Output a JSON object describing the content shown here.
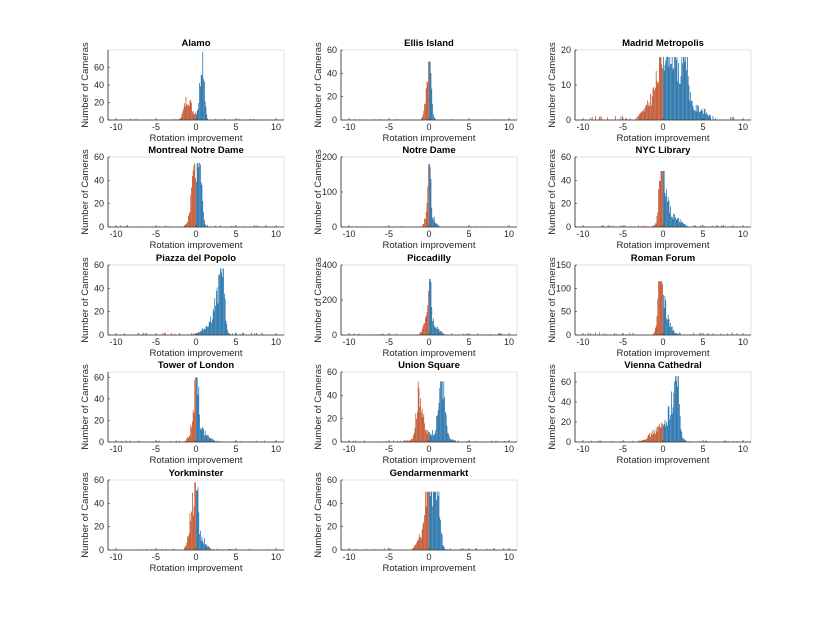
{
  "figure": {
    "background": "#ffffff"
  },
  "colors": {
    "positive": "#1f6fa8",
    "negative": "#c0502a",
    "axis": "#262626"
  },
  "chart_data": [
    {
      "type": "bar",
      "title": "Alamo",
      "xlabel": "Rotation improvement",
      "ylabel": "Number of Cameras",
      "xlim": [
        -11,
        11
      ],
      "ylim": [
        0,
        80
      ],
      "xticks": [
        -10,
        -5,
        0,
        5,
        10
      ],
      "yticks": [
        0,
        20,
        40,
        60
      ],
      "grid": false,
      "peaks": [
        {
          "x": 0.8,
          "y": 78,
          "w": 0.25
        },
        {
          "x": -1.0,
          "y": 25,
          "w": 0.45
        },
        {
          "x": 0.2,
          "y": 8,
          "w": 0.3
        }
      ],
      "tail": 0.5
    },
    {
      "type": "bar",
      "title": "Ellis Island",
      "xlabel": "Rotation improvement",
      "ylabel": "Number of Cameras",
      "xlim": [
        -11,
        11
      ],
      "ylim": [
        0,
        60
      ],
      "xticks": [
        -10,
        -5,
        0,
        5,
        10
      ],
      "yticks": [
        0,
        20,
        40,
        60
      ],
      "grid": false,
      "peaks": [
        {
          "x": 0.1,
          "y": 50,
          "w": 0.18
        },
        {
          "x": -0.1,
          "y": 25,
          "w": 0.35
        }
      ],
      "tail": 0.3
    },
    {
      "type": "bar",
      "title": "Madrid Metropolis",
      "xlabel": "Rotation improvement",
      "ylabel": "Number of Cameras",
      "xlim": [
        -11,
        11
      ],
      "ylim": [
        0,
        20
      ],
      "xticks": [
        -10,
        -5,
        0,
        5,
        10
      ],
      "yticks": [
        0,
        10,
        20
      ],
      "grid": false,
      "peaks": [
        {
          "x": 0.8,
          "y": 14,
          "w": 0.9
        },
        {
          "x": 2.8,
          "y": 18,
          "w": 0.35
        },
        {
          "x": 0.2,
          "y": 10,
          "w": 1.6
        },
        {
          "x": 4.5,
          "y": 3,
          "w": 1.0
        }
      ],
      "tail": 0.4
    },
    {
      "type": "bar",
      "title": "Montreal Notre Dame",
      "xlabel": "Rotation improvement",
      "ylabel": "Number of Cameras",
      "xlim": [
        -11,
        11
      ],
      "ylim": [
        0,
        60
      ],
      "xticks": [
        -10,
        -5,
        0,
        5,
        10
      ],
      "yticks": [
        0,
        20,
        40,
        60
      ],
      "grid": false,
      "peaks": [
        {
          "x": 0.5,
          "y": 55,
          "w": 0.25
        },
        {
          "x": 0.0,
          "y": 30,
          "w": 0.45
        },
        {
          "x": -0.4,
          "y": 18,
          "w": 0.4
        }
      ],
      "tail": 0.6
    },
    {
      "type": "bar",
      "title": "Notre Dame",
      "xlabel": "Rotation improvement",
      "ylabel": "Number of Cameras",
      "xlim": [
        -11,
        11
      ],
      "ylim": [
        0,
        200
      ],
      "xticks": [
        -10,
        -5,
        0,
        5,
        10
      ],
      "yticks": [
        0,
        100,
        200
      ],
      "grid": false,
      "peaks": [
        {
          "x": 0.1,
          "y": 180,
          "w": 0.12
        },
        {
          "x": -0.1,
          "y": 60,
          "w": 0.3
        },
        {
          "x": 0.4,
          "y": 25,
          "w": 0.4
        }
      ],
      "tail": 0.8
    },
    {
      "type": "bar",
      "title": "NYC Library",
      "xlabel": "Rotation improvement",
      "ylabel": "Number of Cameras",
      "xlim": [
        -11,
        11
      ],
      "ylim": [
        0,
        60
      ],
      "xticks": [
        -10,
        -5,
        0,
        5,
        10
      ],
      "yticks": [
        0,
        20,
        40,
        60
      ],
      "grid": false,
      "peaks": [
        {
          "x": -0.2,
          "y": 48,
          "w": 0.22
        },
        {
          "x": 0.1,
          "y": 30,
          "w": 0.4
        },
        {
          "x": 1.0,
          "y": 10,
          "w": 1.0
        }
      ],
      "tail": 0.6
    },
    {
      "type": "bar",
      "title": "Piazza del Popolo",
      "xlabel": "Rotation improvement",
      "ylabel": "Number of Cameras",
      "xlim": [
        -11,
        11
      ],
      "ylim": [
        0,
        60
      ],
      "xticks": [
        -10,
        -5,
        0,
        5,
        10
      ],
      "yticks": [
        0,
        20,
        40,
        60
      ],
      "grid": false,
      "peaks": [
        {
          "x": 3.3,
          "y": 57,
          "w": 0.22
        },
        {
          "x": 2.8,
          "y": 25,
          "w": 0.5
        },
        {
          "x": 2.0,
          "y": 10,
          "w": 1.0
        }
      ],
      "tail": 0.8
    },
    {
      "type": "bar",
      "title": "Piccadilly",
      "xlabel": "Rotation improvement",
      "ylabel": "Number of Cameras",
      "xlim": [
        -11,
        11
      ],
      "ylim": [
        0,
        400
      ],
      "xticks": [
        -10,
        -5,
        0,
        5,
        10
      ],
      "yticks": [
        0,
        200,
        400
      ],
      "grid": false,
      "peaks": [
        {
          "x": 0.1,
          "y": 320,
          "w": 0.15
        },
        {
          "x": -0.2,
          "y": 120,
          "w": 0.4
        },
        {
          "x": 0.6,
          "y": 60,
          "w": 0.6
        }
      ],
      "tail": 4
    },
    {
      "type": "bar",
      "title": "Roman Forum",
      "xlabel": "Rotation improvement",
      "ylabel": "Number of Cameras",
      "xlim": [
        -11,
        11
      ],
      "ylim": [
        0,
        150
      ],
      "xticks": [
        -10,
        -5,
        0,
        5,
        10
      ],
      "yticks": [
        0,
        50,
        100,
        150
      ],
      "grid": false,
      "peaks": [
        {
          "x": -0.4,
          "y": 115,
          "w": 0.22
        },
        {
          "x": -0.1,
          "y": 70,
          "w": 0.4
        },
        {
          "x": 0.5,
          "y": 25,
          "w": 0.6
        }
      ],
      "tail": 2
    },
    {
      "type": "bar",
      "title": "Tower of London",
      "xlabel": "Rotation improvement",
      "ylabel": "Number of Cameras",
      "xlim": [
        -11,
        11
      ],
      "ylim": [
        0,
        65
      ],
      "xticks": [
        -10,
        -5,
        0,
        5,
        10
      ],
      "yticks": [
        0,
        20,
        40,
        60
      ],
      "grid": false,
      "peaks": [
        {
          "x": 0.1,
          "y": 60,
          "w": 0.18
        },
        {
          "x": -0.1,
          "y": 20,
          "w": 0.5
        },
        {
          "x": 0.8,
          "y": 8,
          "w": 0.8
        }
      ],
      "tail": 0.5
    },
    {
      "type": "bar",
      "title": "Union Square",
      "xlabel": "Rotation improvement",
      "ylabel": "Number of Cameras",
      "xlim": [
        -11,
        11
      ],
      "ylim": [
        0,
        60
      ],
      "xticks": [
        -10,
        -5,
        0,
        5,
        10
      ],
      "yticks": [
        0,
        20,
        40,
        60
      ],
      "grid": false,
      "peaks": [
        {
          "x": 1.6,
          "y": 52,
          "w": 0.35
        },
        {
          "x": -1.2,
          "y": 40,
          "w": 0.35
        },
        {
          "x": 0.3,
          "y": 8,
          "w": 1.5
        }
      ],
      "tail": 0.5
    },
    {
      "type": "bar",
      "title": "Vienna Cathedral",
      "xlabel": "Rotation improvement",
      "ylabel": "Number of Cameras",
      "xlim": [
        -11,
        11
      ],
      "ylim": [
        0,
        70
      ],
      "xticks": [
        -10,
        -5,
        0,
        5,
        10
      ],
      "yticks": [
        0,
        20,
        40,
        60
      ],
      "grid": false,
      "peaks": [
        {
          "x": 1.8,
          "y": 66,
          "w": 0.22
        },
        {
          "x": 1.2,
          "y": 28,
          "w": 0.5
        },
        {
          "x": 0.0,
          "y": 15,
          "w": 1.3
        }
      ],
      "tail": 0.6
    },
    {
      "type": "bar",
      "title": "Yorkminster",
      "xlabel": "Rotation improvement",
      "ylabel": "Number of Cameras",
      "xlim": [
        -11,
        11
      ],
      "ylim": [
        0,
        60
      ],
      "xticks": [
        -10,
        -5,
        0,
        5,
        10
      ],
      "yticks": [
        0,
        20,
        40,
        60
      ],
      "grid": false,
      "peaks": [
        {
          "x": 0.0,
          "y": 58,
          "w": 0.2
        },
        {
          "x": -0.5,
          "y": 30,
          "w": 0.4
        },
        {
          "x": 0.6,
          "y": 10,
          "w": 0.6
        }
      ],
      "tail": 0.4
    },
    {
      "type": "bar",
      "title": "Gendarmenmarkt",
      "xlabel": "Rotation improvement",
      "ylabel": "Number of Cameras",
      "xlim": [
        -11,
        11
      ],
      "ylim": [
        0,
        60
      ],
      "xticks": [
        -10,
        -5,
        0,
        5,
        10
      ],
      "yticks": [
        0,
        20,
        40,
        60
      ],
      "grid": false,
      "peaks": [
        {
          "x": -0.1,
          "y": 50,
          "w": 0.3
        },
        {
          "x": 1.0,
          "y": 45,
          "w": 0.35
        },
        {
          "x": 0.4,
          "y": 20,
          "w": 0.6
        },
        {
          "x": -0.8,
          "y": 12,
          "w": 0.6
        }
      ],
      "tail": 0.6
    }
  ]
}
